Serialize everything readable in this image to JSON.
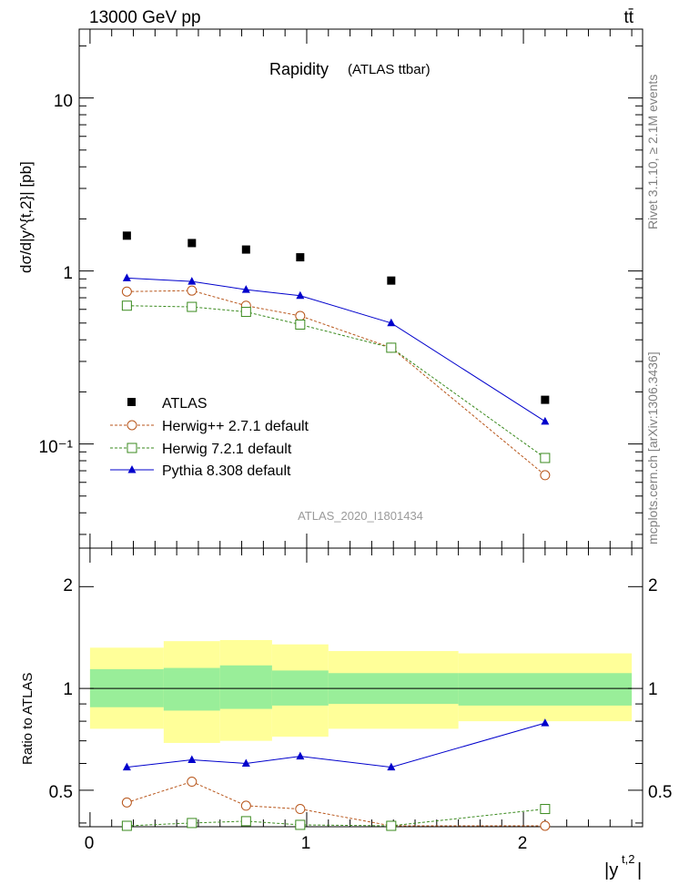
{
  "header": {
    "energy_label": "13000 GeV pp",
    "process_label": "tt̄",
    "title_main": "Rapidity",
    "title_sub": "(ATLAS ttbar)",
    "watermark": "ATLAS_2020_I1801434",
    "side_right_top": "Rivet 3.1.10, ≥ 2.1M events",
    "side_right_bottom": "mcplots.cern.ch [arXiv:1306.3436]"
  },
  "axes": {
    "ylabel_main": "dσ/d|y^{t,2}| [pb]",
    "ylabel_ratio": "Ratio to ATLAS",
    "xlabel": "|y^{t,2}|",
    "xlabel_base": "|y",
    "xlabel_sup": "t,2",
    "xlabel_end": "|",
    "main_ticks": [
      "10⁻¹",
      "1",
      "10"
    ],
    "ratio_ticks": [
      "0.5",
      "1",
      "2"
    ],
    "x_ticks": [
      "0",
      "1",
      "2"
    ]
  },
  "legend": {
    "atlas": "ATLAS",
    "herwigpp": "Herwig++ 2.7.1 default",
    "herwig7": "Herwig 7.2.1 default",
    "pythia": "Pythia 8.308 default"
  },
  "chart_data": [
    {
      "type": "scatter",
      "panel": "main",
      "yscale": "log",
      "xlim": [
        -0.05,
        2.55
      ],
      "ylim": [
        0.025,
        25
      ],
      "x": [
        0.17,
        0.47,
        0.72,
        0.97,
        1.39,
        2.1
      ],
      "series": [
        {
          "name": "ATLAS",
          "values": [
            1.6,
            1.45,
            1.33,
            1.2,
            0.88,
            0.18
          ],
          "marker": "square",
          "color": "#000000"
        },
        {
          "name": "Herwig++ 2.7.1 default",
          "values": [
            0.76,
            0.77,
            0.63,
            0.55,
            0.36,
            0.066
          ],
          "marker": "open-circle",
          "color": "#b8561b",
          "dash": true
        },
        {
          "name": "Herwig 7.2.1 default",
          "values": [
            0.63,
            0.62,
            0.58,
            0.49,
            0.36,
            0.083
          ],
          "marker": "open-square",
          "color": "#3a8a1e",
          "dash": true
        },
        {
          "name": "Pythia 8.308 default",
          "values": [
            0.91,
            0.87,
            0.78,
            0.72,
            0.5,
            0.135
          ],
          "marker": "triangle",
          "color": "#0000cc",
          "dash": false
        }
      ]
    },
    {
      "type": "scatter",
      "panel": "ratio",
      "yscale": "log",
      "xlim": [
        -0.05,
        2.55
      ],
      "ylim": [
        0.39,
        2.6
      ],
      "x": [
        0.17,
        0.47,
        0.72,
        0.97,
        1.39,
        2.1
      ],
      "bins": [
        {
          "x0": 0.0,
          "x1": 0.34,
          "y_lo": 0.76,
          "y_hi": 1.32,
          "g_lo": 0.88,
          "g_hi": 1.14
        },
        {
          "x0": 0.34,
          "x1": 0.6,
          "y_lo": 0.69,
          "y_hi": 1.38,
          "g_lo": 0.86,
          "g_hi": 1.15
        },
        {
          "x0": 0.6,
          "x1": 0.84,
          "y_lo": 0.7,
          "y_hi": 1.39,
          "g_lo": 0.87,
          "g_hi": 1.17
        },
        {
          "x0": 0.84,
          "x1": 1.1,
          "y_lo": 0.72,
          "y_hi": 1.35,
          "g_lo": 0.89,
          "g_hi": 1.13
        },
        {
          "x0": 1.1,
          "x1": 1.7,
          "y_lo": 0.76,
          "y_hi": 1.29,
          "g_lo": 0.9,
          "g_hi": 1.11
        },
        {
          "x0": 1.7,
          "x1": 2.5,
          "y_lo": 0.8,
          "y_hi": 1.27,
          "g_lo": 0.89,
          "g_hi": 1.11
        }
      ],
      "series": [
        {
          "name": "Herwig++ 2.7.1 default",
          "values": [
            0.46,
            0.53,
            0.45,
            0.44,
            0.39,
            0.36
          ],
          "marker": "open-circle",
          "color": "#b8561b",
          "dash": true
        },
        {
          "name": "Herwig 7.2.1 default",
          "values": [
            0.37,
            0.4,
            0.405,
            0.395,
            0.39,
            0.44
          ],
          "marker": "open-square",
          "color": "#3a8a1e",
          "dash": true
        },
        {
          "name": "Pythia 8.308 default",
          "values": [
            0.585,
            0.615,
            0.6,
            0.63,
            0.585,
            0.79
          ],
          "marker": "triangle",
          "color": "#0000cc",
          "dash": false
        }
      ]
    }
  ]
}
